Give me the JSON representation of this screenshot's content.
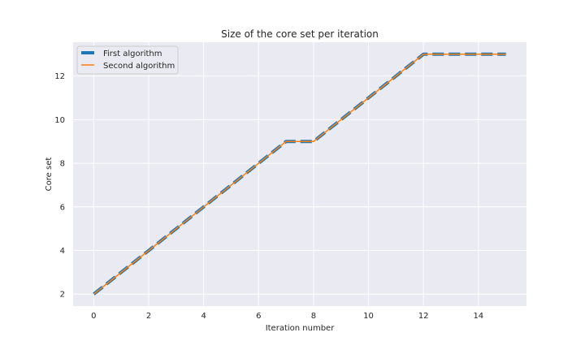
{
  "chart_data": {
    "type": "line",
    "title": "Size of the core set per iteration",
    "xlabel": "Iteration number",
    "ylabel": "Core set",
    "x": [
      0,
      1,
      2,
      3,
      4,
      5,
      6,
      7,
      8,
      9,
      10,
      11,
      12,
      13,
      14,
      15
    ],
    "series": [
      {
        "name": "First algorithm",
        "values": [
          2,
          3,
          4,
          5,
          6,
          7,
          8,
          9,
          9,
          10,
          11,
          12,
          13,
          13,
          13,
          13
        ],
        "color": "#1f77b4",
        "style": "dashed-thick"
      },
      {
        "name": "Second algorithm",
        "values": [
          2,
          3,
          4,
          5,
          6,
          7,
          8,
          9,
          9,
          10,
          11,
          12,
          13,
          13,
          13,
          13
        ],
        "color": "#ff7f0e",
        "style": "solid"
      }
    ],
    "xlim": [
      -0.75,
      15.75
    ],
    "ylim": [
      1.45,
      13.55
    ],
    "xticks": [
      0,
      2,
      4,
      6,
      8,
      10,
      12,
      14
    ],
    "yticks": [
      2,
      4,
      6,
      8,
      10,
      12
    ],
    "grid": true,
    "legend_position": "upper-left",
    "background": "#eaeaf2",
    "grid_color": "#ffffff"
  }
}
